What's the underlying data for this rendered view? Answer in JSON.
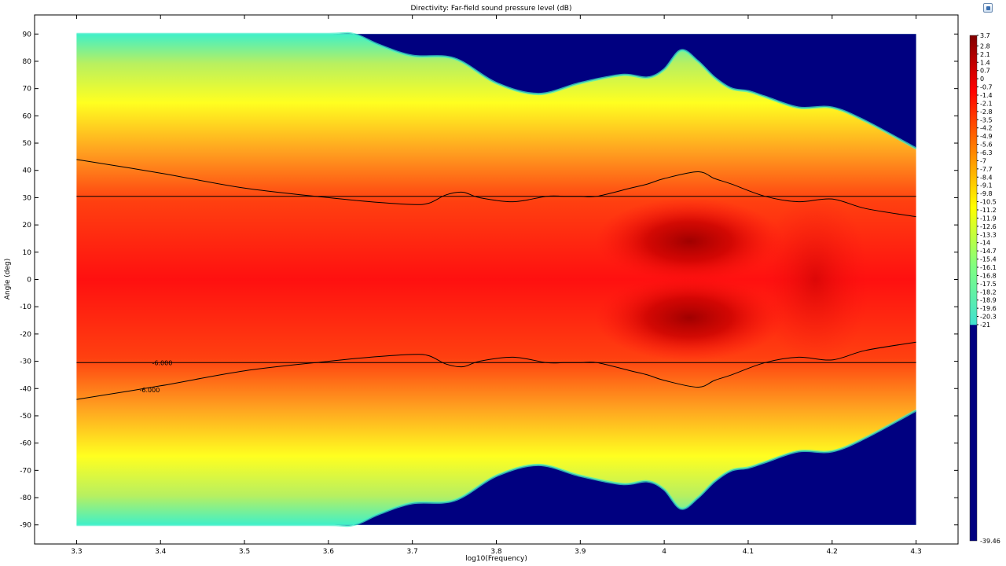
{
  "window": {
    "corner_button_icon": "plot-settings-icon"
  },
  "chart_data": {
    "type": "heatmap",
    "title": "Directivity: Far-field sound pressure level (dB)",
    "xlabel": "log10(Frequency)",
    "ylabel": "Angle (deg)",
    "xlim": [
      3.25,
      4.35
    ],
    "ylim": [
      -97,
      97
    ],
    "x_ticks": [
      "3.3",
      "3.4",
      "3.5",
      "3.6",
      "3.7",
      "3.8",
      "3.9",
      "4",
      "4.1",
      "4.2",
      "4.3"
    ],
    "y_ticks": [
      "90",
      "80",
      "70",
      "60",
      "50",
      "40",
      "30",
      "20",
      "10",
      "0",
      "-10",
      "-20",
      "-30",
      "-40",
      "-50",
      "-60",
      "-70",
      "-80",
      "-90"
    ],
    "data_x_range": [
      3.3,
      4.3
    ],
    "data_y_range": [
      -90,
      90
    ],
    "grid": false,
    "colormap": "rainbow (jet)",
    "colorbar": {
      "max": 3.7,
      "min": -39.46,
      "ticks": [
        "3.7",
        "2.8",
        "2.1",
        "1.4",
        "0.7",
        "0",
        "-0.7",
        "-1.4",
        "-2.1",
        "-2.8",
        "-3.5",
        "-4.2",
        "-4.9",
        "-5.6",
        "-6.3",
        "-7",
        "-7.7",
        "-8.4",
        "-9.1",
        "-9.8",
        "-10.5",
        "-11.2",
        "-11.9",
        "-12.6",
        "-13.3",
        "-14",
        "-14.7",
        "-15.4",
        "-16.1",
        "-16.8",
        "-17.5",
        "-18.2",
        "-18.9",
        "-19.6",
        "-20.3",
        "-21"
      ],
      "bottom_label": "-39.46"
    },
    "contour_level_label": "-6.000",
    "contour_6db": {
      "x": [
        3.3,
        3.4,
        3.5,
        3.6,
        3.65,
        3.7,
        3.72,
        3.74,
        3.76,
        3.78,
        3.82,
        3.86,
        3.88,
        3.9,
        3.92,
        3.96,
        3.98,
        4.0,
        4.04,
        4.06,
        4.08,
        4.12,
        4.16,
        4.2,
        4.24,
        4.3
      ],
      "y": [
        44,
        39,
        33.5,
        30,
        28.5,
        27.5,
        28,
        31,
        32,
        30,
        28.5,
        30.5,
        30.5,
        30.5,
        30.5,
        33.5,
        35,
        37,
        39.5,
        37,
        35,
        30.5,
        28.5,
        29.5,
        26,
        23
      ]
    },
    "reference_lines_deg": [
      30.5,
      -30.5
    ],
    "sound_field": {
      "boundary_x": [
        3.3,
        3.4,
        3.5,
        3.6,
        3.63,
        3.66,
        3.7,
        3.75,
        3.8,
        3.85,
        3.9,
        3.95,
        3.98,
        4.0,
        4.02,
        4.04,
        4.06,
        4.08,
        4.1,
        4.12,
        4.16,
        4.2,
        4.24,
        4.3
      ],
      "boundary_deg": [
        90,
        90,
        90,
        90,
        90,
        86,
        82,
        81,
        72,
        68,
        72,
        75,
        74,
        77,
        84,
        80,
        74,
        70,
        69,
        67,
        63,
        63,
        58,
        48
      ],
      "hotspots": [
        {
          "x": 4.03,
          "y": 14,
          "level_db": 3.7
        },
        {
          "x": 4.03,
          "y": -14,
          "level_db": 3.7
        }
      ],
      "noise_floor_db": -39.46
    }
  }
}
